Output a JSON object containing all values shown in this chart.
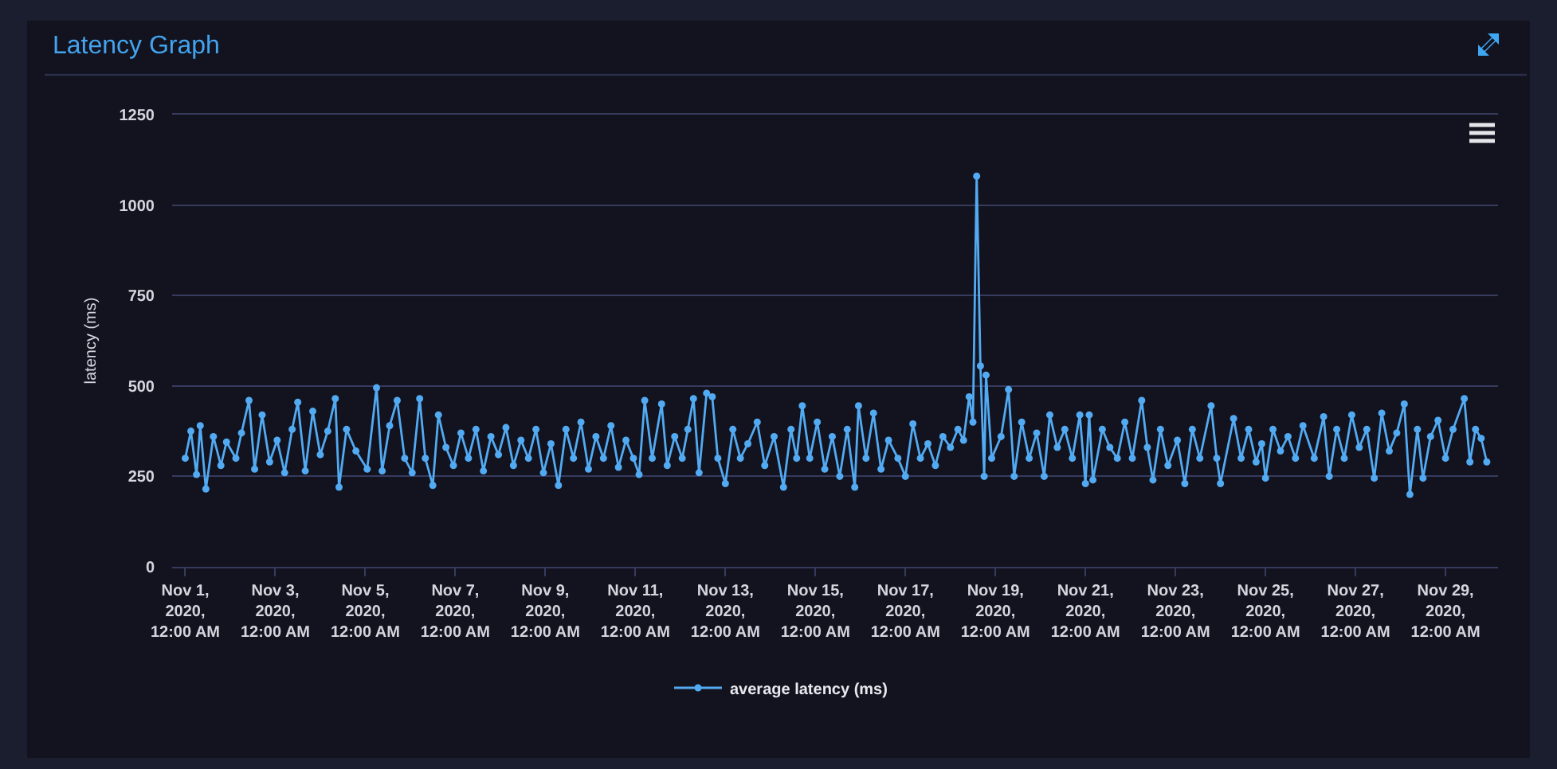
{
  "chart_data": {
    "type": "line",
    "title": "Latency Graph",
    "ylabel": "latency (ms)",
    "xlim": [
      "2020-10-31T17:00",
      "2020-11-30T04:00"
    ],
    "xticks": [
      {
        "value": "2020-11-01",
        "label": "Nov 1,\n2020,\n12:00 AM"
      },
      {
        "value": "2020-11-03",
        "label": "Nov 3,\n2020,\n12:00 AM"
      },
      {
        "value": "2020-11-05",
        "label": "Nov 5,\n2020,\n12:00 AM"
      },
      {
        "value": "2020-11-07",
        "label": "Nov 7,\n2020,\n12:00 AM"
      },
      {
        "value": "2020-11-09",
        "label": "Nov 9,\n2020,\n12:00 AM"
      },
      {
        "value": "2020-11-11",
        "label": "Nov 11,\n2020,\n12:00 AM"
      },
      {
        "value": "2020-11-13",
        "label": "Nov 13,\n2020,\n12:00 AM"
      },
      {
        "value": "2020-11-15",
        "label": "Nov 15,\n2020,\n12:00 AM"
      },
      {
        "value": "2020-11-17",
        "label": "Nov 17,\n2020,\n12:00 AM"
      },
      {
        "value": "2020-11-19",
        "label": "Nov 19,\n2020,\n12:00 AM"
      },
      {
        "value": "2020-11-21",
        "label": "Nov 21,\n2020,\n12:00 AM"
      },
      {
        "value": "2020-11-23",
        "label": "Nov 23,\n2020,\n12:00 AM"
      },
      {
        "value": "2020-11-25",
        "label": "Nov 25,\n2020,\n12:00 AM"
      },
      {
        "value": "2020-11-27",
        "label": "Nov 27,\n2020,\n12:00 AM"
      },
      {
        "value": "2020-11-29",
        "label": "Nov 29,\n2020,\n12:00 AM"
      }
    ],
    "ylim": [
      0,
      1250
    ],
    "yticks": [
      0,
      250,
      500,
      750,
      1000,
      1250
    ],
    "grid": "y",
    "legend": "bottom",
    "marker": "circle",
    "x": [
      "2020-11-01T00:00",
      "2020-11-01T03:00",
      "2020-11-01T06:00",
      "2020-11-01T08:00",
      "2020-11-01T11:00",
      "2020-11-01T15:00",
      "2020-11-01T19:00",
      "2020-11-01T22:00",
      "2020-11-02T03:00",
      "2020-11-02T06:00",
      "2020-11-02T10:00",
      "2020-11-02T13:00",
      "2020-11-02T17:00",
      "2020-11-02T21:00",
      "2020-11-03T01:00",
      "2020-11-03T05:00",
      "2020-11-03T09:00",
      "2020-11-03T12:00",
      "2020-11-03T16:00",
      "2020-11-03T20:00",
      "2020-11-04T00:00",
      "2020-11-04T04:00",
      "2020-11-04T08:00",
      "2020-11-04T10:00",
      "2020-11-04T14:00",
      "2020-11-04T19:00",
      "2020-11-05T01:00",
      "2020-11-05T06:00",
      "2020-11-05T09:00",
      "2020-11-05T13:00",
      "2020-11-05T17:00",
      "2020-11-05T21:00",
      "2020-11-06T01:00",
      "2020-11-06T05:00",
      "2020-11-06T08:00",
      "2020-11-06T12:00",
      "2020-11-06T15:00",
      "2020-11-06T19:00",
      "2020-11-06T23:00",
      "2020-11-07T03:00",
      "2020-11-07T07:00",
      "2020-11-07T11:00",
      "2020-11-07T15:00",
      "2020-11-07T19:00",
      "2020-11-07T23:00",
      "2020-11-08T03:00",
      "2020-11-08T07:00",
      "2020-11-08T11:00",
      "2020-11-08T15:00",
      "2020-11-08T19:00",
      "2020-11-08T23:00",
      "2020-11-09T03:00",
      "2020-11-09T07:00",
      "2020-11-09T11:00",
      "2020-11-09T15:00",
      "2020-11-09T19:00",
      "2020-11-09T23:00",
      "2020-11-10T03:00",
      "2020-11-10T07:00",
      "2020-11-10T11:00",
      "2020-11-10T15:00",
      "2020-11-10T19:00",
      "2020-11-10T23:00",
      "2020-11-11T02:00",
      "2020-11-11T05:00",
      "2020-11-11T09:00",
      "2020-11-11T14:00",
      "2020-11-11T17:00",
      "2020-11-11T21:00",
      "2020-11-12T01:00",
      "2020-11-12T04:00",
      "2020-11-12T07:00",
      "2020-11-12T10:00",
      "2020-11-12T14:00",
      "2020-11-12T17:00",
      "2020-11-12T20:00",
      "2020-11-13T00:00",
      "2020-11-13T04:00",
      "2020-11-13T08:00",
      "2020-11-13T12:00",
      "2020-11-13T17:00",
      "2020-11-13T21:00",
      "2020-11-14T02:00",
      "2020-11-14T07:00",
      "2020-11-14T11:00",
      "2020-11-14T14:00",
      "2020-11-14T17:00",
      "2020-11-14T21:00",
      "2020-11-15T01:00",
      "2020-11-15T05:00",
      "2020-11-15T09:00",
      "2020-11-15T13:00",
      "2020-11-15T17:00",
      "2020-11-15T21:00",
      "2020-11-15T23:00",
      "2020-11-16T03:00",
      "2020-11-16T07:00",
      "2020-11-16T11:00",
      "2020-11-16T15:00",
      "2020-11-16T20:00",
      "2020-11-17T00:00",
      "2020-11-17T04:00",
      "2020-11-17T08:00",
      "2020-11-17T12:00",
      "2020-11-17T16:00",
      "2020-11-17T20:00",
      "2020-11-18T00:00",
      "2020-11-18T04:00",
      "2020-11-18T07:00",
      "2020-11-18T10:00",
      "2020-11-18T12:00",
      "2020-11-18T14:00",
      "2020-11-18T16:00",
      "2020-11-18T18:00",
      "2020-11-18T19:00",
      "2020-11-18T22:00",
      "2020-11-19T03:00",
      "2020-11-19T07:00",
      "2020-11-19T10:00",
      "2020-11-19T14:00",
      "2020-11-19T18:00",
      "2020-11-19T22:00",
      "2020-11-20T02:00",
      "2020-11-20T05:00",
      "2020-11-20T09:00",
      "2020-11-20T13:00",
      "2020-11-20T17:00",
      "2020-11-20T21:00",
      "2020-11-21T00:00",
      "2020-11-21T02:00",
      "2020-11-21T04:00",
      "2020-11-21T09:00",
      "2020-11-21T13:00",
      "2020-11-21T17:00",
      "2020-11-21T21:00",
      "2020-11-22T01:00",
      "2020-11-22T06:00",
      "2020-11-22T09:00",
      "2020-11-22T12:00",
      "2020-11-22T16:00",
      "2020-11-22T20:00",
      "2020-11-23T01:00",
      "2020-11-23T05:00",
      "2020-11-23T09:00",
      "2020-11-23T13:00",
      "2020-11-23T19:00",
      "2020-11-23T22:00",
      "2020-11-24T00:00",
      "2020-11-24T07:00",
      "2020-11-24T11:00",
      "2020-11-24T15:00",
      "2020-11-24T19:00",
      "2020-11-24T22:00",
      "2020-11-25T00:00",
      "2020-11-25T04:00",
      "2020-11-25T08:00",
      "2020-11-25T12:00",
      "2020-11-25T16:00",
      "2020-11-25T20:00",
      "2020-11-26T02:00",
      "2020-11-26T07:00",
      "2020-11-26T10:00",
      "2020-11-26T14:00",
      "2020-11-26T18:00",
      "2020-11-26T22:00",
      "2020-11-27T02:00",
      "2020-11-27T06:00",
      "2020-11-27T10:00",
      "2020-11-27T14:00",
      "2020-11-27T18:00",
      "2020-11-27T22:00",
      "2020-11-28T02:00",
      "2020-11-28T05:00",
      "2020-11-28T09:00",
      "2020-11-28T12:00",
      "2020-11-28T16:00",
      "2020-11-28T20:00",
      "2020-11-29T00:00",
      "2020-11-29T04:00",
      "2020-11-29T10:00",
      "2020-11-29T13:00",
      "2020-11-29T16:00",
      "2020-11-29T19:00",
      "2020-11-29T22:00"
    ],
    "series": [
      {
        "name": "average latency (ms)",
        "color": "#52aaf2",
        "values": [
          300,
          375,
          255,
          390,
          215,
          360,
          280,
          345,
          300,
          370,
          460,
          270,
          420,
          290,
          350,
          260,
          380,
          455,
          265,
          430,
          310,
          375,
          465,
          220,
          380,
          320,
          270,
          495,
          265,
          390,
          460,
          300,
          260,
          465,
          300,
          225,
          420,
          330,
          280,
          370,
          300,
          380,
          265,
          360,
          310,
          385,
          280,
          350,
          300,
          380,
          260,
          340,
          225,
          380,
          300,
          400,
          270,
          360,
          300,
          390,
          275,
          350,
          300,
          255,
          460,
          300,
          450,
          280,
          360,
          300,
          380,
          465,
          260,
          480,
          470,
          300,
          230,
          380,
          300,
          340,
          400,
          280,
          360,
          220,
          380,
          300,
          445,
          300,
          400,
          270,
          360,
          250,
          380,
          220,
          445,
          300,
          425,
          270,
          350,
          300,
          250,
          395,
          300,
          340,
          280,
          360,
          330,
          380,
          350,
          470,
          400,
          1080,
          555,
          250,
          530,
          300,
          360,
          490,
          250,
          400,
          300,
          370,
          250,
          420,
          330,
          380,
          300,
          420,
          230,
          420,
          240,
          380,
          330,
          300,
          400,
          300,
          460,
          330,
          240,
          380,
          280,
          350,
          230,
          380,
          300,
          445,
          300,
          230,
          410,
          300,
          380,
          290,
          340,
          245,
          380,
          320,
          360,
          300,
          390,
          300,
          415,
          250,
          380,
          300,
          420,
          330,
          380,
          245,
          425,
          320,
          370,
          450,
          200,
          380,
          245,
          360,
          405,
          300,
          380,
          465,
          290,
          380,
          355,
          290
        ]
      }
    ]
  }
}
